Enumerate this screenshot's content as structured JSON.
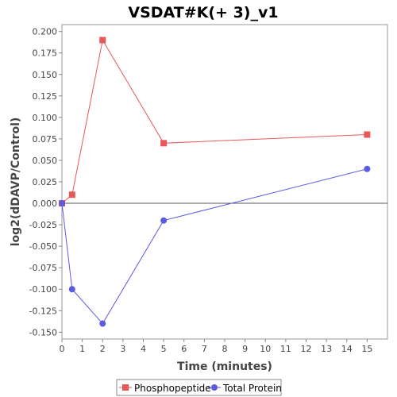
{
  "chart_data": {
    "type": "line",
    "title": "VSDAT#K(+ 3)_v1",
    "xlabel": "Time (minutes)",
    "ylabel": "log2(dDAVP/Control)",
    "xlim": [
      0,
      16
    ],
    "ylim": [
      -0.158,
      0.208
    ],
    "x_ticks": [
      0,
      1,
      2,
      3,
      4,
      5,
      6,
      7,
      8,
      9,
      10,
      11,
      12,
      13,
      14,
      15
    ],
    "y_ticks": [
      -0.15,
      -0.125,
      -0.1,
      -0.075,
      -0.05,
      -0.025,
      0.0,
      0.025,
      0.05,
      0.075,
      0.1,
      0.125,
      0.15,
      0.175,
      0.2
    ],
    "y_tick_labels": [
      "-0.150",
      "-0.125",
      "-0.100",
      "-0.075",
      "-0.050",
      "-0.025",
      "0.000",
      "0.025",
      "0.050",
      "0.075",
      "0.100",
      "0.125",
      "0.150",
      "0.175",
      "0.200"
    ],
    "zero_line": true,
    "grid": false,
    "legend_position": "bottom-center",
    "series": [
      {
        "name": "Phosphopeptide",
        "color": "#e8575a",
        "marker": "square",
        "x": [
          0,
          0.5,
          2,
          5,
          15
        ],
        "y": [
          0.0,
          0.01,
          0.19,
          0.07,
          0.08
        ]
      },
      {
        "name": "Total Protein",
        "color": "#5b5be3",
        "marker": "circle",
        "x": [
          0,
          0.5,
          2,
          5,
          15
        ],
        "y": [
          0.0,
          -0.1,
          -0.14,
          -0.02,
          0.04
        ]
      }
    ]
  }
}
